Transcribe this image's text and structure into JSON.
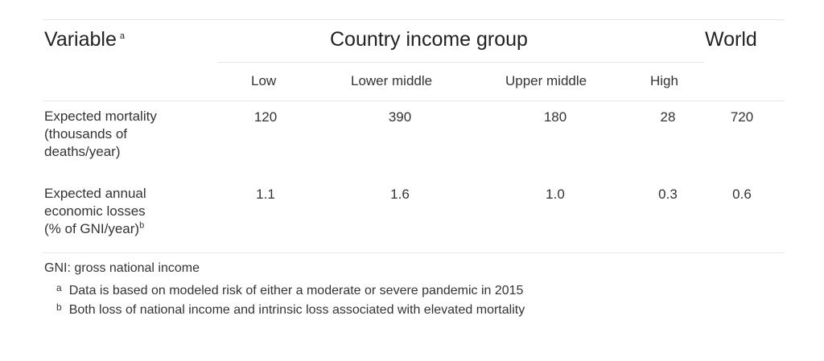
{
  "table": {
    "variable_header": "Variable",
    "variable_marker": "a",
    "group_header": "Country income group",
    "world_header": "World",
    "columns": [
      "Low",
      "Lower middle",
      "Upper middle",
      "High"
    ],
    "rows": [
      {
        "label_lines": [
          "Expected mortality",
          "(thousands of",
          "deaths/year)"
        ],
        "marker": "",
        "values": [
          "120",
          "390",
          "180",
          "28"
        ],
        "world": "720"
      },
      {
        "label_lines": [
          "Expected annual",
          "economic losses",
          "(% of GNI/year)"
        ],
        "marker": "b",
        "values": [
          "1.1",
          "1.6",
          "1.0",
          "0.3"
        ],
        "world": "0.6"
      }
    ]
  },
  "footnotes": {
    "abbreviation": "GNI: gross national income",
    "notes": [
      {
        "mark": "a",
        "text": "Data is based on modeled risk of either a moderate or severe pandemic in 2015"
      },
      {
        "mark": "b",
        "text": "Both loss of national income and intrinsic loss associated with elevated mortality"
      }
    ]
  }
}
